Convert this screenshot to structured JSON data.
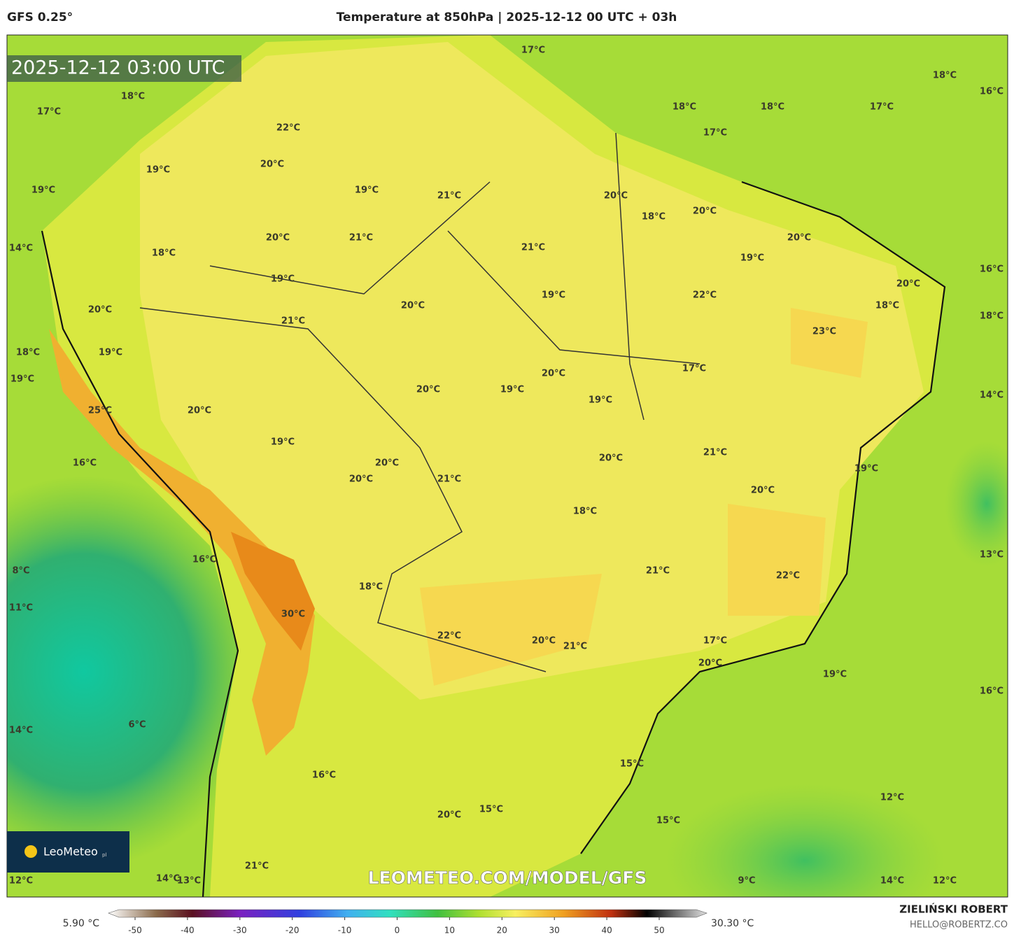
{
  "header": {
    "model": "GFS 0.25°",
    "title": "Temperature at 850hPa | 2025-12-12 00 UTC + 03h"
  },
  "map": {
    "timestamp": "2025-12-12 03:00 UTC",
    "logo": "LeoMeteo",
    "logo_suffix": "pl",
    "watermark": "LEOMETEO.COM/MODEL/GFS",
    "labels": [
      "17°C",
      "18°C",
      "16°C",
      "18°C",
      "18°C",
      "17°C",
      "17°C",
      "18°C",
      "17°C",
      "22°C",
      "20°C",
      "19°C",
      "19°C",
      "19°C",
      "21°C",
      "20°C",
      "18°C",
      "20°C",
      "20°C",
      "14°C",
      "18°C",
      "20°C",
      "21°C",
      "21°C",
      "19°C",
      "16°C",
      "19°C",
      "19°C",
      "22°C",
      "20°C",
      "18°C",
      "20°C",
      "20°C",
      "18°C",
      "21°C",
      "23°C",
      "18°C",
      "19°C",
      "17°C",
      "20°C",
      "19°C",
      "20°C",
      "19°C",
      "19°C",
      "14°C",
      "25°C",
      "20°C",
      "19°C",
      "21°C",
      "20°C",
      "20°C",
      "16°C",
      "19°C",
      "20°C",
      "21°C",
      "20°C",
      "18°C",
      "13°C",
      "16°C",
      "8°C",
      "21°C",
      "22°C",
      "18°C",
      "11°C",
      "30°C",
      "22°C",
      "20°C",
      "21°C",
      "17°C",
      "20°C",
      "19°C",
      "16°C",
      "6°C",
      "14°C",
      "15°C",
      "16°C",
      "12°C",
      "15°C",
      "20°C",
      "15°C",
      "21°C",
      "12°C",
      "14°C",
      "13°C",
      "9°C",
      "14°C",
      "12°C"
    ]
  },
  "colorbar": {
    "min_label": "5.90 °C",
    "max_label": "30.30 °C",
    "ticks": [
      -50,
      -40,
      -30,
      -20,
      -10,
      0,
      10,
      20,
      30,
      40,
      50
    ]
  },
  "footer": {
    "author": "ZIELIŃSKI ROBERT",
    "email": "HELLO@ROBERTZ.CO"
  }
}
